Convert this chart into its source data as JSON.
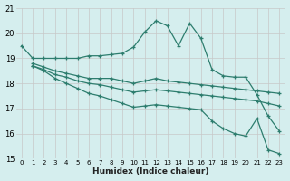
{
  "bg_color": "#d5eeee",
  "grid_color": "#c8c8c8",
  "line_color": "#2d7d6e",
  "xlabel": "Humidex (Indice chaleur)",
  "xlim": [
    -0.5,
    23.5
  ],
  "ylim": [
    15,
    21
  ],
  "xticks": [
    0,
    1,
    2,
    3,
    4,
    5,
    6,
    7,
    8,
    9,
    10,
    11,
    12,
    13,
    14,
    15,
    16,
    17,
    18,
    19,
    20,
    21,
    22,
    23
  ],
  "yticks": [
    15,
    16,
    17,
    18,
    19,
    20,
    21
  ],
  "series": [
    {
      "x": [
        0,
        1,
        2,
        3,
        4,
        5,
        6,
        7,
        8,
        9,
        10,
        11,
        12,
        13,
        14,
        15,
        16,
        17,
        18,
        19,
        20,
        21,
        22,
        23
      ],
      "y": [
        19.5,
        19.0,
        19.0,
        19.0,
        19.0,
        19.0,
        19.1,
        19.1,
        19.15,
        19.2,
        19.45,
        20.05,
        20.5,
        20.3,
        19.5,
        20.4,
        19.8,
        18.55,
        18.3,
        18.25,
        18.25,
        17.55,
        16.7,
        16.1
      ]
    },
    {
      "x": [
        1,
        2,
        3,
        4,
        5,
        6,
        7,
        8,
        9,
        10,
        11,
        12,
        13,
        14,
        15,
        16,
        17,
        18,
        19,
        20,
        21,
        22,
        23
      ],
      "y": [
        18.8,
        18.65,
        18.5,
        18.4,
        18.3,
        18.2,
        18.2,
        18.2,
        18.1,
        18.0,
        18.1,
        18.2,
        18.1,
        18.05,
        18.0,
        17.95,
        17.9,
        17.85,
        17.8,
        17.75,
        17.7,
        17.65,
        17.6
      ]
    },
    {
      "x": [
        1,
        2,
        3,
        4,
        5,
        6,
        7,
        8,
        9,
        10,
        11,
        12,
        13,
        14,
        15,
        16,
        17,
        18,
        19,
        20,
        21,
        22,
        23
      ],
      "y": [
        18.7,
        18.55,
        18.35,
        18.25,
        18.1,
        18.0,
        17.95,
        17.85,
        17.75,
        17.65,
        17.7,
        17.75,
        17.7,
        17.65,
        17.6,
        17.55,
        17.5,
        17.45,
        17.4,
        17.35,
        17.3,
        17.2,
        17.1
      ]
    },
    {
      "x": [
        1,
        2,
        3,
        4,
        5,
        6,
        7,
        8,
        9,
        10,
        11,
        12,
        13,
        14,
        15,
        16,
        17,
        18,
        19,
        20,
        21,
        22,
        23
      ],
      "y": [
        18.7,
        18.5,
        18.2,
        18.0,
        17.8,
        17.6,
        17.5,
        17.35,
        17.2,
        17.05,
        17.1,
        17.15,
        17.1,
        17.05,
        17.0,
        16.95,
        16.5,
        16.2,
        16.0,
        15.9,
        16.6,
        15.35,
        15.2
      ]
    }
  ]
}
